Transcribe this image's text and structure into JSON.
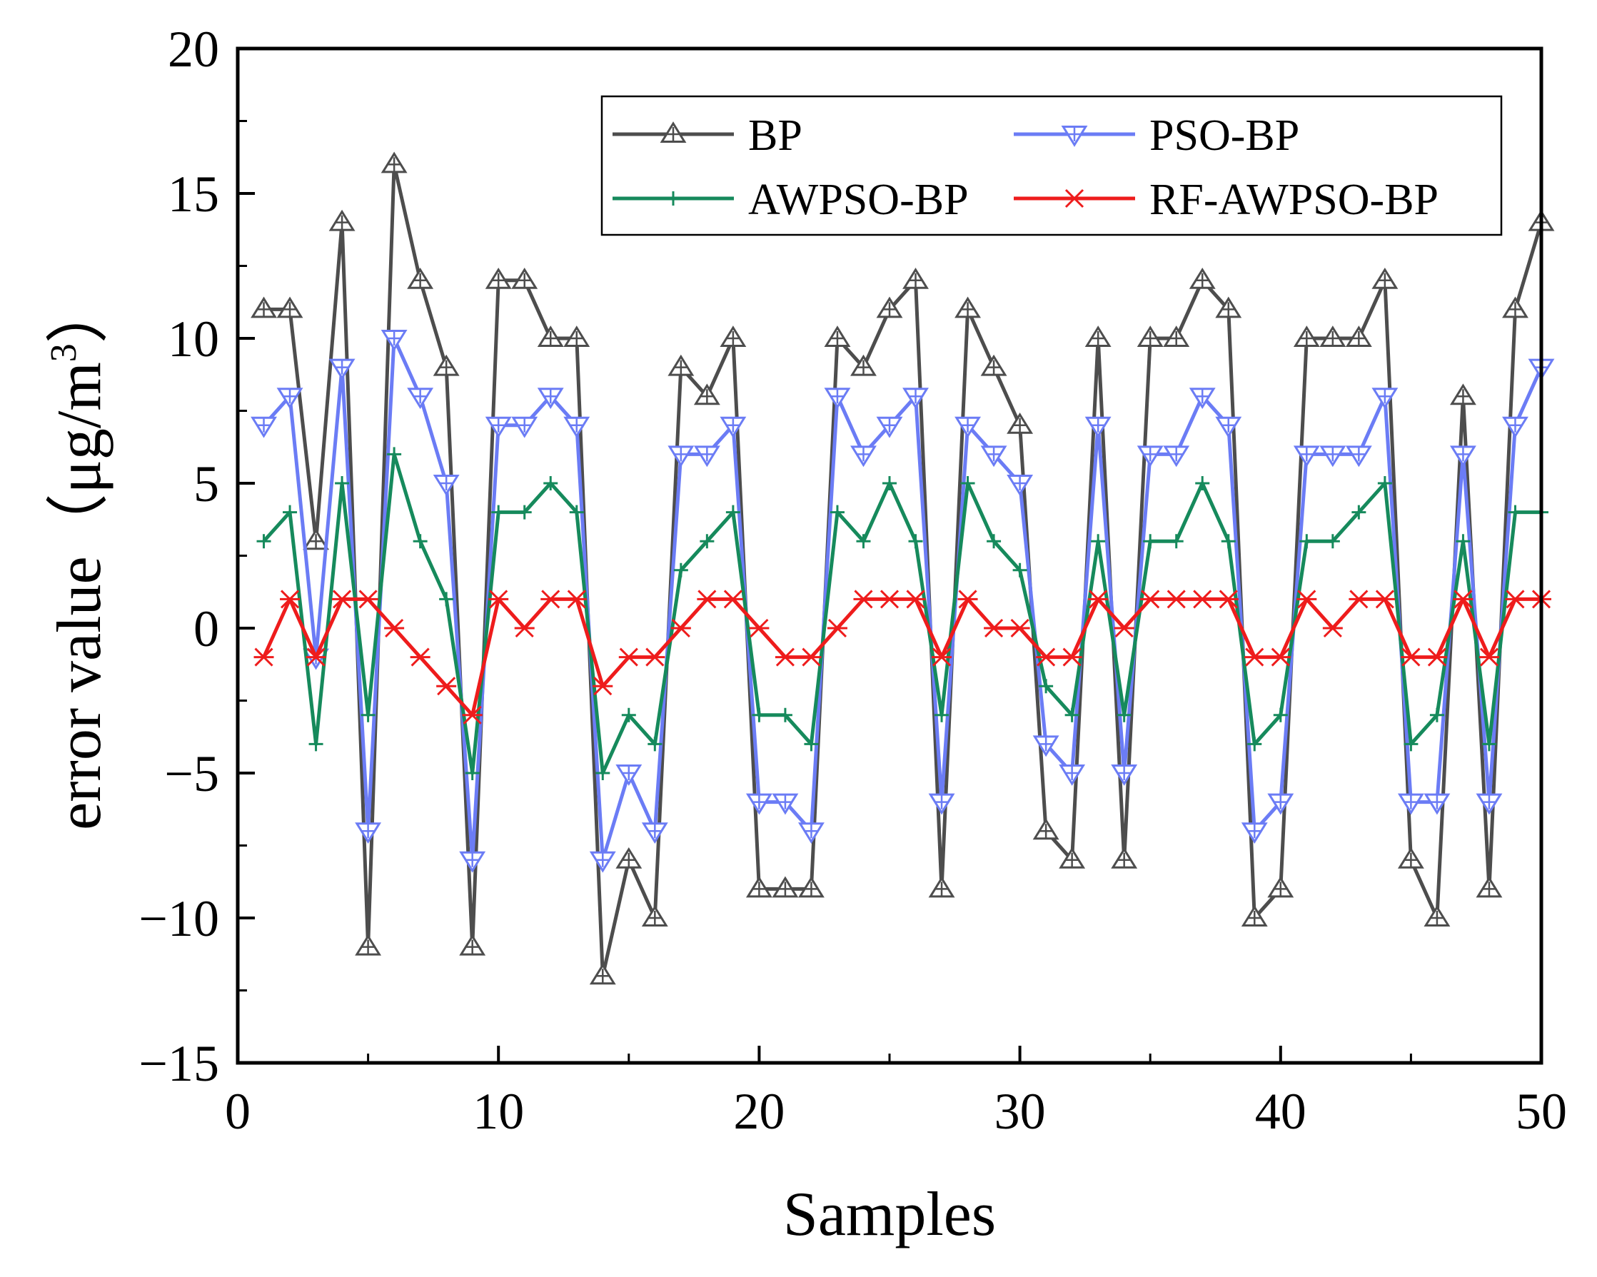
{
  "chart_data": {
    "type": "line",
    "xlabel": "Samples",
    "ylabel": "error value（μg/m",
    "ylabel_sup": "3",
    "ylabel_close": "）",
    "xlim": [
      0,
      50
    ],
    "ylim": [
      -15,
      20
    ],
    "xticks": [
      0,
      10,
      20,
      30,
      40,
      50
    ],
    "yticks": [
      -15,
      -10,
      -5,
      0,
      5,
      10,
      15,
      20
    ],
    "xtick_labels": [
      "0",
      "10",
      "20",
      "30",
      "40",
      "50"
    ],
    "ytick_labels": [
      "−15",
      "−10",
      "−5",
      "0",
      "5",
      "10",
      "15",
      "20"
    ],
    "grid": false,
    "legend_position": "top-right",
    "x": [
      1,
      2,
      3,
      4,
      5,
      6,
      7,
      8,
      9,
      10,
      11,
      12,
      13,
      14,
      15,
      16,
      17,
      18,
      19,
      20,
      21,
      22,
      23,
      24,
      25,
      26,
      27,
      28,
      29,
      30,
      31,
      32,
      33,
      34,
      35,
      36,
      37,
      38,
      39,
      40,
      41,
      42,
      43,
      44,
      45,
      46,
      47,
      48,
      49,
      50
    ],
    "series": [
      {
        "name": "BP",
        "color": "#4d4d4d",
        "marker": "triangle-up",
        "values": [
          11,
          11,
          3,
          14,
          -11,
          16,
          12,
          9,
          -11,
          12,
          12,
          10,
          10,
          -12,
          -8,
          -10,
          9,
          8,
          10,
          -9,
          -9,
          -9,
          10,
          9,
          11,
          12,
          -9,
          11,
          9,
          7,
          -7,
          -8,
          10,
          -8,
          10,
          10,
          12,
          11,
          -10,
          -9,
          10,
          10,
          10,
          12,
          -8,
          -10,
          8,
          -9,
          11,
          14
        ]
      },
      {
        "name": "PSO-BP",
        "color": "#6b7cf5",
        "marker": "triangle-down",
        "values": [
          7,
          8,
          -1,
          9,
          -7,
          10,
          8,
          5,
          -8,
          7,
          7,
          8,
          7,
          -8,
          -5,
          -7,
          6,
          6,
          7,
          -6,
          -6,
          -7,
          8,
          6,
          7,
          8,
          -6,
          7,
          6,
          5,
          -4,
          -5,
          7,
          -5,
          6,
          6,
          8,
          7,
          -7,
          -6,
          6,
          6,
          6,
          8,
          -6,
          -6,
          6,
          -6,
          7,
          9
        ]
      },
      {
        "name": "AWPSO-BP",
        "color": "#168a5c",
        "marker": "plus",
        "values": [
          3,
          4,
          -4,
          5,
          -3,
          6,
          3,
          1,
          -5,
          4,
          4,
          5,
          4,
          -5,
          -3,
          -4,
          2,
          3,
          4,
          -3,
          -3,
          -4,
          4,
          3,
          5,
          3,
          -3,
          5,
          3,
          2,
          -2,
          -3,
          3,
          -3,
          3,
          3,
          5,
          3,
          -4,
          -3,
          3,
          3,
          4,
          5,
          -4,
          -3,
          3,
          -4,
          4,
          4
        ]
      },
      {
        "name": "RF-AWPSO-BP",
        "color": "#ee1c1c",
        "marker": "asterisk",
        "values": [
          -1,
          1,
          -1,
          1,
          1,
          0,
          -1,
          -2,
          -3,
          1,
          0,
          1,
          1,
          -2,
          -1,
          -1,
          0,
          1,
          1,
          0,
          -1,
          -1,
          0,
          1,
          1,
          1,
          -1,
          1,
          0,
          0,
          -1,
          -1,
          1,
          0,
          1,
          1,
          1,
          1,
          -1,
          -1,
          1,
          0,
          1,
          1,
          -1,
          -1,
          1,
          -1,
          1,
          1
        ]
      }
    ]
  }
}
